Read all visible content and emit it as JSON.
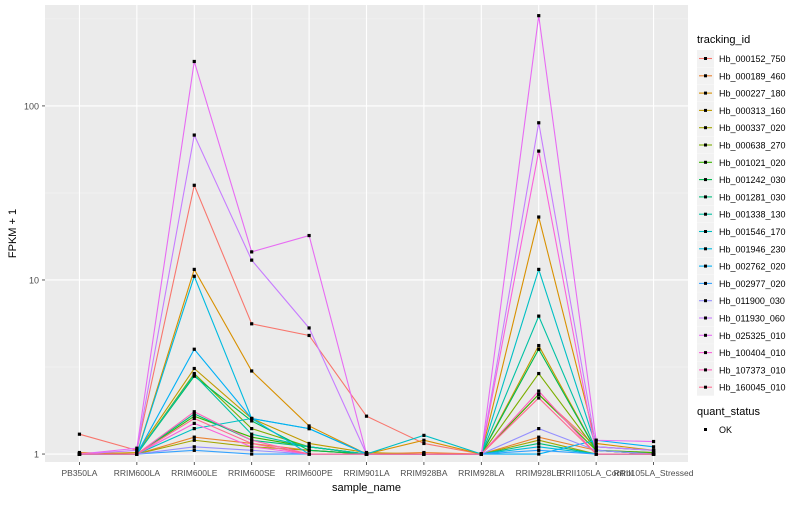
{
  "chart_data": {
    "type": "line",
    "title": "",
    "xlabel": "sample_name",
    "ylabel": "FPKM + 1",
    "y_scale": "log10",
    "ylim": [
      0.9,
      380
    ],
    "y_ticks": [
      1,
      10,
      100
    ],
    "grid": true,
    "legend_position": "right",
    "categories": [
      "PB350LA",
      "RRIM600LA",
      "RRIM600LE",
      "RRIM600SE",
      "RRIM600PE",
      "RRIM901LA",
      "RRIM928BA",
      "RRIM928LA",
      "RRIM928LE",
      "RRII105LA_Control",
      "RRII105LA_Stressed"
    ],
    "category_labels": [
      "PB350LA",
      "RRIM600LA",
      "RRIM600LE",
      "RRIM600SE",
      "RRIM600PE",
      "RRIM901LA",
      "RRIM928BA",
      "RRIM928LA",
      "RRIM928LE",
      "RRII105LA_Control",
      "RRII105LA_Stressed"
    ],
    "legend_title": "tracking_id",
    "series": [
      {
        "name": "Hb_000152_750",
        "color": "#F8766D",
        "values": [
          1.3,
          1.05,
          35,
          5.6,
          4.8,
          1.65,
          1.15,
          1.0,
          2.2,
          1.1,
          1.05
        ]
      },
      {
        "name": "Hb_000189_460",
        "color": "#EA8331",
        "values": [
          1.02,
          1.0,
          1.25,
          1.15,
          1.05,
          1.0,
          1.02,
          1.0,
          1.25,
          1.05,
          1.02
        ]
      },
      {
        "name": "Hb_000227_180",
        "color": "#D89000",
        "values": [
          1.0,
          1.0,
          11.5,
          3.0,
          1.45,
          1.0,
          1.2,
          1.0,
          23,
          1.15,
          1.05
        ]
      },
      {
        "name": "Hb_000313_160",
        "color": "#C09B00",
        "values": [
          1.0,
          1.02,
          3.1,
          1.6,
          1.15,
          1.02,
          1.0,
          1.0,
          4.2,
          1.05,
          1.0
        ]
      },
      {
        "name": "Hb_000337_020",
        "color": "#A3A500",
        "values": [
          1.0,
          1.0,
          1.2,
          1.1,
          1.05,
          1.0,
          1.0,
          1.0,
          1.2,
          1.0,
          1.0
        ]
      },
      {
        "name": "Hb_000638_270",
        "color": "#7CAE00",
        "values": [
          1.0,
          1.0,
          2.9,
          1.4,
          1.1,
          1.0,
          1.0,
          1.0,
          2.9,
          1.05,
          1.0
        ]
      },
      {
        "name": "Hb_001021_020",
        "color": "#39B600",
        "values": [
          1.0,
          1.0,
          1.65,
          1.25,
          1.1,
          1.0,
          1.0,
          1.0,
          2.2,
          1.05,
          1.02
        ]
      },
      {
        "name": "Hb_001242_030",
        "color": "#00BB4E",
        "values": [
          1.0,
          1.0,
          2.8,
          1.55,
          1.05,
          1.0,
          1.0,
          1.0,
          4.0,
          1.05,
          1.0
        ]
      },
      {
        "name": "Hb_001281_030",
        "color": "#00BF7D",
        "values": [
          1.0,
          1.0,
          1.7,
          1.2,
          1.1,
          1.0,
          1.0,
          1.0,
          1.15,
          1.0,
          1.0
        ]
      },
      {
        "name": "Hb_001338_130",
        "color": "#00C1A3",
        "values": [
          1.0,
          1.0,
          2.85,
          1.3,
          1.1,
          1.0,
          1.0,
          1.0,
          6.2,
          1.05,
          1.0
        ]
      },
      {
        "name": "Hb_001546_170",
        "color": "#00BFC4",
        "values": [
          1.0,
          1.0,
          1.4,
          1.6,
          1.4,
          1.0,
          1.28,
          1.0,
          11.5,
          1.1,
          1.05
        ]
      },
      {
        "name": "Hb_001946_230",
        "color": "#00BAE0",
        "values": [
          1.0,
          1.0,
          10.5,
          1.6,
          1.0,
          1.0,
          1.0,
          1.0,
          1.1,
          1.0,
          1.0
        ]
      },
      {
        "name": "Hb_002762_020",
        "color": "#00B0F6",
        "values": [
          1.0,
          1.0,
          4.0,
          1.6,
          1.4,
          1.0,
          1.0,
          1.0,
          1.0,
          1.2,
          1.1
        ]
      },
      {
        "name": "Hb_002977_020",
        "color": "#35A2FF",
        "values": [
          1.0,
          1.0,
          1.05,
          1.0,
          1.0,
          1.0,
          1.0,
          1.0,
          1.05,
          1.0,
          1.0
        ]
      },
      {
        "name": "Hb_011900_030",
        "color": "#9590FF",
        "values": [
          1.0,
          1.0,
          1.1,
          1.05,
          1.0,
          1.0,
          1.0,
          1.0,
          1.4,
          1.05,
          1.0
        ]
      },
      {
        "name": "Hb_011930_060",
        "color": "#C77CFF",
        "values": [
          1.0,
          1.05,
          68,
          13,
          5.3,
          1.0,
          1.0,
          1.0,
          80,
          1.1,
          1.05
        ]
      },
      {
        "name": "Hb_025325_010",
        "color": "#E76BF3",
        "values": [
          1.0,
          1.08,
          180,
          14.5,
          18,
          1.0,
          1.0,
          1.0,
          330,
          1.2,
          1.18
        ]
      },
      {
        "name": "Hb_100404_010",
        "color": "#FA62DB",
        "values": [
          1.0,
          1.0,
          1.5,
          1.1,
          1.0,
          1.0,
          1.0,
          1.0,
          55,
          1.0,
          1.0
        ]
      },
      {
        "name": "Hb_107373_010",
        "color": "#FF62BC",
        "values": [
          1.0,
          1.0,
          1.75,
          1.2,
          1.0,
          1.0,
          1.0,
          1.0,
          2.3,
          1.0,
          1.0
        ]
      },
      {
        "name": "Hb_160045_010",
        "color": "#FF6C91",
        "values": [
          1.0,
          1.0,
          1.6,
          1.15,
          1.0,
          1.0,
          1.0,
          1.0,
          2.1,
          1.0,
          1.0
        ]
      }
    ],
    "shape_legend": {
      "title": "quant_status",
      "items": [
        "OK"
      ]
    }
  }
}
